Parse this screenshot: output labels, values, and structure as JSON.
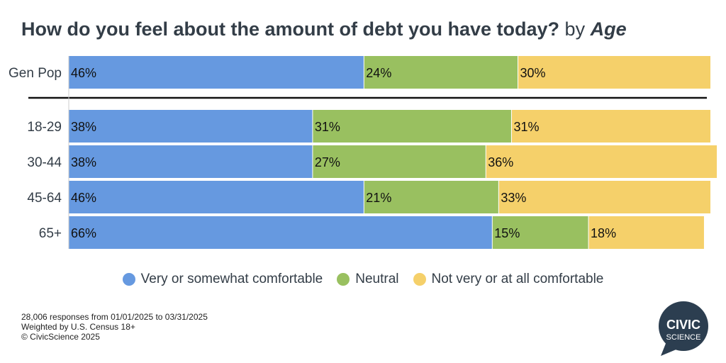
{
  "title": {
    "question": "How do you feel about the amount of debt you have today?",
    "by": "by",
    "dimension": "Age"
  },
  "chart_data": {
    "type": "bar",
    "orientation": "horizontal",
    "stacked": true,
    "percent_of_total": true,
    "categories": [
      "Gen Pop",
      "18-29",
      "30-44",
      "45-64",
      "65+"
    ],
    "series": [
      {
        "name": "Very or somewhat comfortable",
        "color": "#6699e0",
        "values": [
          46,
          38,
          38,
          46,
          66
        ]
      },
      {
        "name": "Neutral",
        "color": "#99c060",
        "values": [
          24,
          31,
          27,
          21,
          15
        ]
      },
      {
        "name": "Not very or at all comfortable",
        "color": "#f5d06a",
        "values": [
          30,
          31,
          36,
          33,
          18
        ]
      }
    ],
    "xlim": [
      0,
      100
    ],
    "grid": false,
    "legend_position": "bottom",
    "data_labels": true,
    "label_suffix": "%"
  },
  "footer": {
    "responses": "28,006 responses from 01/01/2025 to 03/31/2025",
    "weighting": "Weighted by U.S. Census 18+",
    "copyright": "© CivicScience 2025"
  },
  "logo": {
    "line1": "CIVIC",
    "line2": "SCIENCE",
    "color": "#2c3e50"
  }
}
